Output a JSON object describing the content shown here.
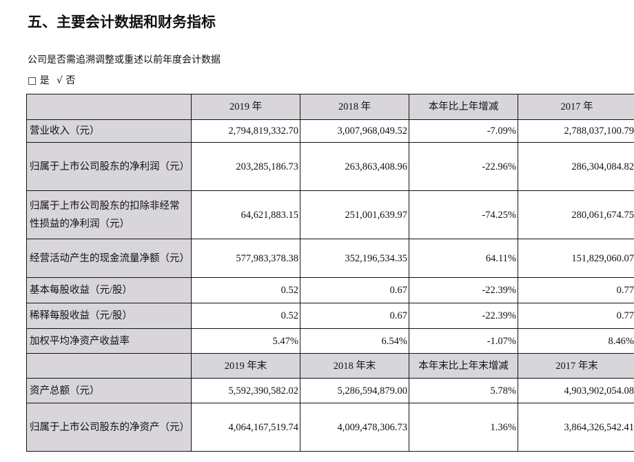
{
  "heading": "五、主要会计数据和财务指标",
  "question": "公司是否需追溯调整或重述以前年度会计数据",
  "options": {
    "yes_box": "□",
    "yes": "是",
    "no_check": "√",
    "no": "否"
  },
  "table": {
    "header1": [
      "",
      "2019 年",
      "2018 年",
      "本年比上年增减",
      "2017 年"
    ],
    "rows1": [
      {
        "label": "营业收入（元）",
        "values": [
          "2,794,819,332.70",
          "3,007,968,049.52",
          "-7.09%",
          "2,788,037,100.79"
        ]
      },
      {
        "label": "归属于上市公司股东的净利润（元）",
        "values": [
          "203,285,186.73",
          "263,863,408.96",
          "-22.96%",
          "286,304,084.82"
        ]
      },
      {
        "label": "归属于上市公司股东的扣除非经常性损益的净利润（元）",
        "values": [
          "64,621,883.15",
          "251,001,639.97",
          "-74.25%",
          "280,061,674.75"
        ]
      },
      {
        "label": "经营活动产生的现金流量净额（元）",
        "values": [
          "577,983,378.38",
          "352,196,534.35",
          "64.11%",
          "151,829,060.07"
        ]
      },
      {
        "label": "基本每股收益（元/股）",
        "values": [
          "0.52",
          "0.67",
          "-22.39%",
          "0.77"
        ]
      },
      {
        "label": "稀释每股收益（元/股）",
        "values": [
          "0.52",
          "0.67",
          "-22.39%",
          "0.77"
        ]
      },
      {
        "label": "加权平均净资产收益率",
        "values": [
          "5.47%",
          "6.54%",
          "-1.07%",
          "8.46%"
        ]
      }
    ],
    "header2": [
      "",
      "2019 年末",
      "2018 年末",
      "本年末比上年末增减",
      "2017 年末"
    ],
    "rows2": [
      {
        "label": "资产总额（元）",
        "values": [
          "5,592,390,582.02",
          "5,286,594,879.00",
          "5.78%",
          "4,903,902,054.08"
        ]
      },
      {
        "label": "归属于上市公司股东的净资产（元）",
        "values": [
          "4,064,167,519.74",
          "4,009,478,306.73",
          "1.36%",
          "3,864,326,542.41"
        ]
      }
    ]
  }
}
